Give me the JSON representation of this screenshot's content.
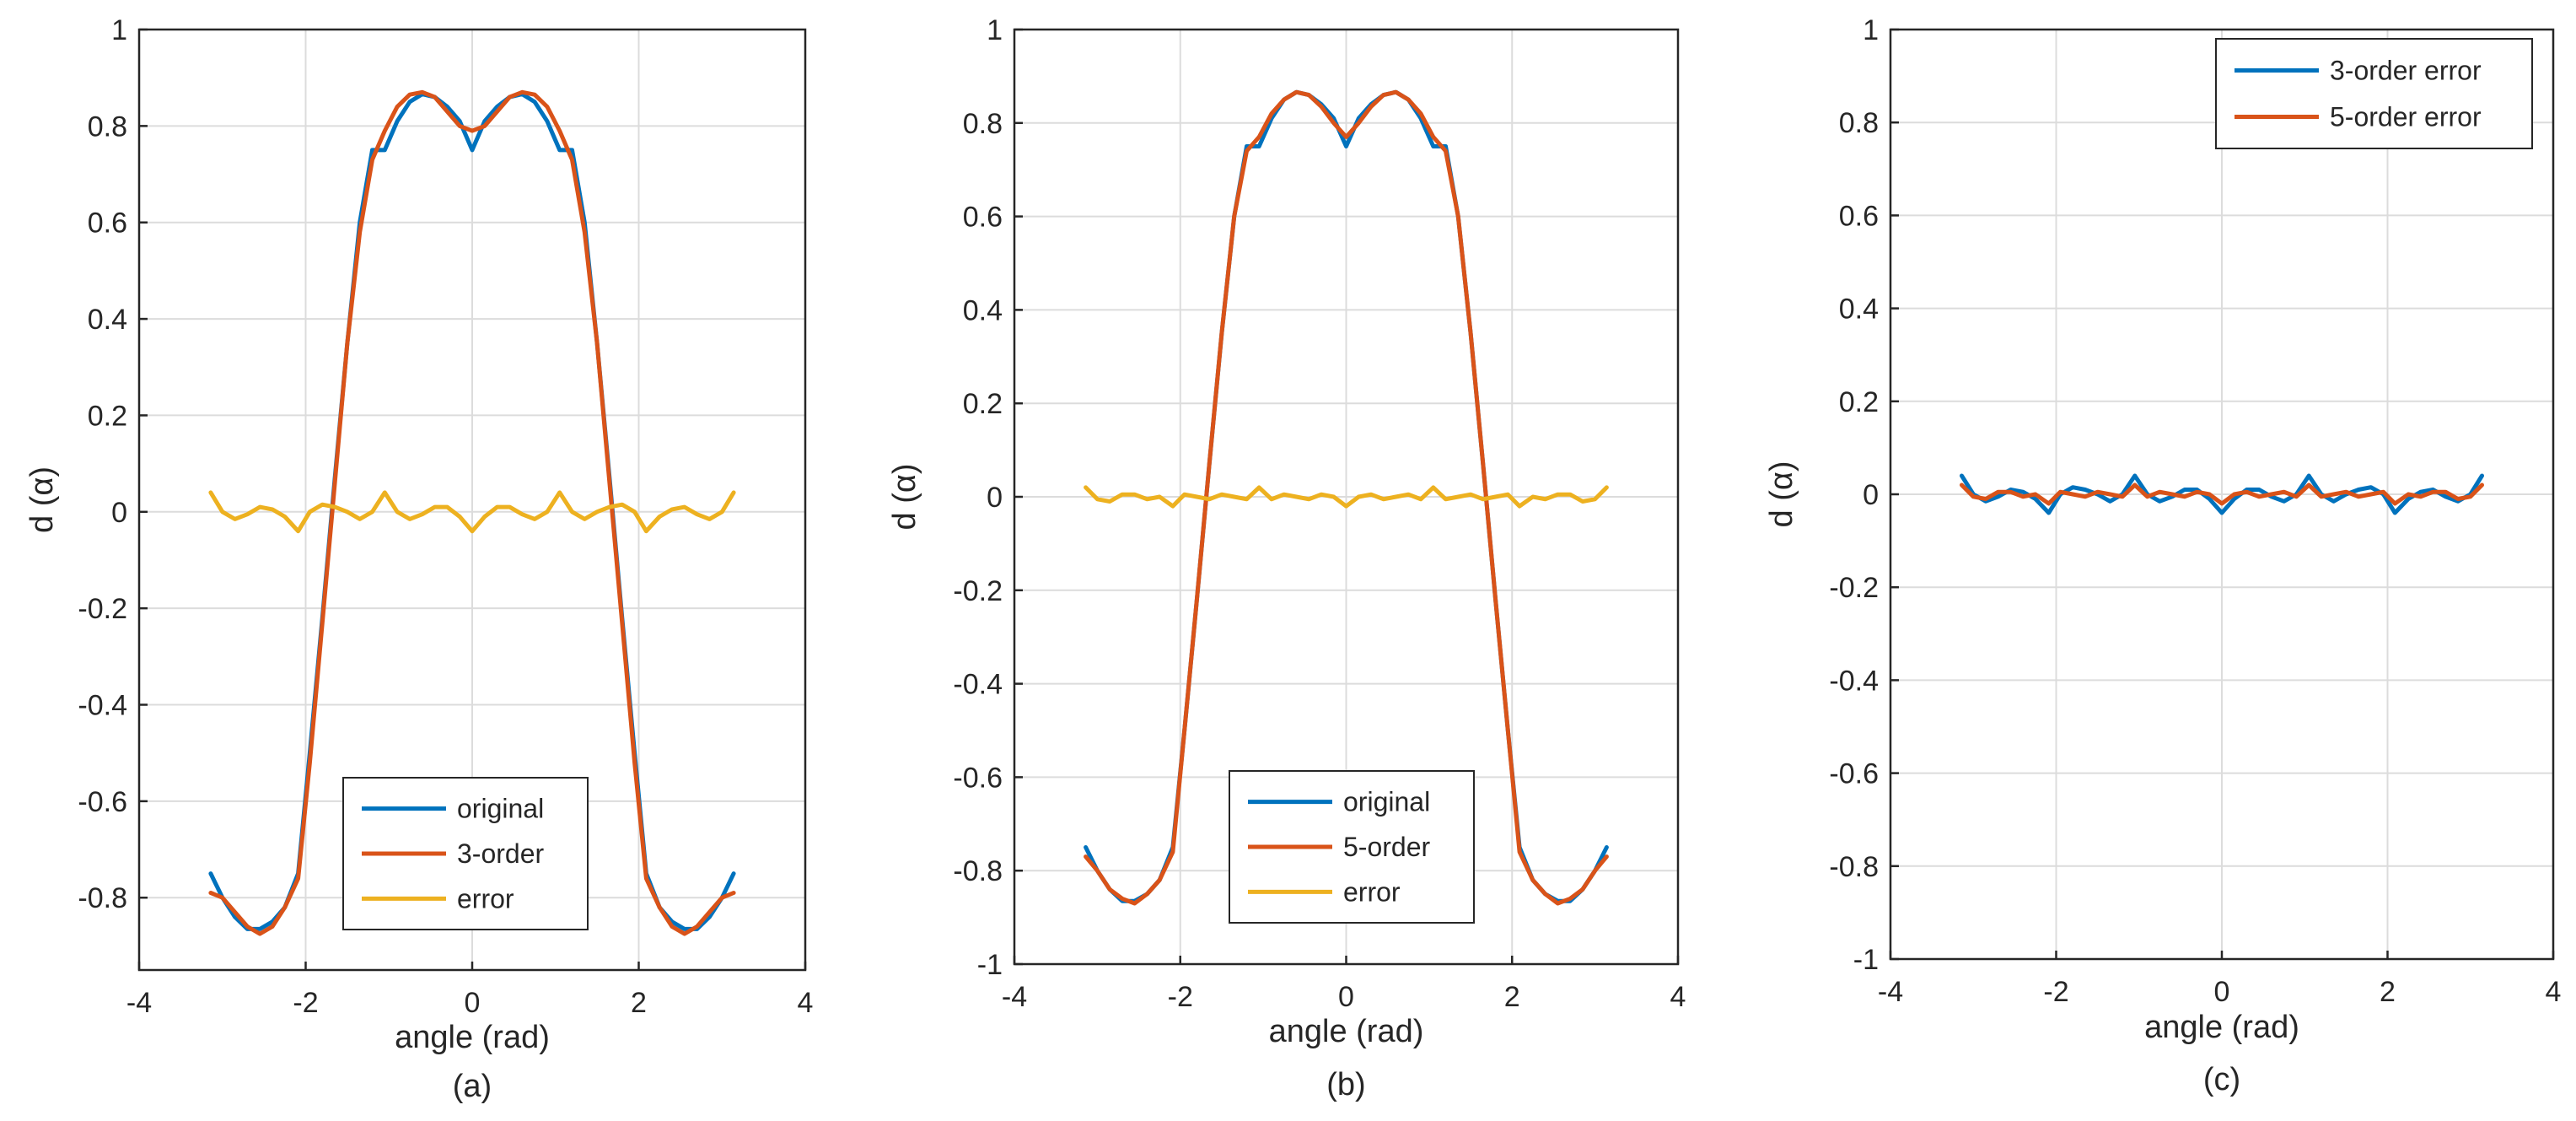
{
  "chart_data": [
    {
      "type": "line",
      "panel": "a",
      "caption": "(a)",
      "xlabel": "angle (rad)",
      "ylabel": "d (α)",
      "xlim": [
        -4,
        4
      ],
      "ylim": [
        -0.95,
        1.0
      ],
      "xticks": [
        -4,
        -2,
        0,
        2,
        4
      ],
      "yticks": [
        -0.8,
        -0.6,
        -0.4,
        -0.2,
        0,
        0.2,
        0.4,
        0.6,
        0.8,
        1
      ],
      "grid": true,
      "legend_position": "bottom-center",
      "series": [
        {
          "name": "original",
          "color": "#0072BD",
          "x": [
            -3.14,
            -3.0,
            -2.85,
            -2.7,
            -2.55,
            -2.4,
            -2.25,
            -2.09,
            -1.95,
            -1.8,
            -1.65,
            -1.5,
            -1.35,
            -1.2,
            -1.05,
            -0.9,
            -0.75,
            -0.6,
            -0.45,
            -0.3,
            -0.15,
            0,
            0.15,
            0.3,
            0.45,
            0.6,
            0.75,
            0.9,
            1.05,
            1.2,
            1.35,
            1.5,
            1.65,
            1.8,
            1.95,
            2.09,
            2.25,
            2.4,
            2.55,
            2.7,
            2.85,
            3.0,
            3.14
          ],
          "y": [
            -0.75,
            -0.8,
            -0.84,
            -0.865,
            -0.865,
            -0.85,
            -0.82,
            -0.75,
            -0.5,
            -0.22,
            0.07,
            0.35,
            0.6,
            0.75,
            0.75,
            0.81,
            0.85,
            0.866,
            0.86,
            0.84,
            0.81,
            0.75,
            0.81,
            0.84,
            0.86,
            0.866,
            0.85,
            0.81,
            0.75,
            0.75,
            0.6,
            0.35,
            0.07,
            -0.22,
            -0.5,
            -0.75,
            -0.82,
            -0.85,
            -0.865,
            -0.865,
            -0.84,
            -0.8,
            -0.75
          ]
        },
        {
          "name": "3-order",
          "color": "#D95319",
          "x": [
            -3.14,
            -3.0,
            -2.85,
            -2.7,
            -2.55,
            -2.4,
            -2.25,
            -2.09,
            -1.95,
            -1.8,
            -1.65,
            -1.5,
            -1.35,
            -1.2,
            -1.05,
            -0.9,
            -0.75,
            -0.6,
            -0.45,
            -0.3,
            -0.15,
            0,
            0.15,
            0.3,
            0.45,
            0.6,
            0.75,
            0.9,
            1.05,
            1.2,
            1.35,
            1.5,
            1.65,
            1.8,
            1.95,
            2.09,
            2.25,
            2.4,
            2.55,
            2.7,
            2.85,
            3.0,
            3.14
          ],
          "y": [
            -0.79,
            -0.8,
            -0.83,
            -0.86,
            -0.875,
            -0.86,
            -0.82,
            -0.76,
            -0.52,
            -0.23,
            0.06,
            0.35,
            0.58,
            0.73,
            0.79,
            0.84,
            0.865,
            0.87,
            0.86,
            0.83,
            0.8,
            0.79,
            0.8,
            0.83,
            0.86,
            0.87,
            0.865,
            0.84,
            0.79,
            0.73,
            0.58,
            0.35,
            0.06,
            -0.23,
            -0.52,
            -0.76,
            -0.82,
            -0.86,
            -0.875,
            -0.86,
            -0.83,
            -0.8,
            -0.79
          ]
        },
        {
          "name": "error",
          "color": "#EDB120",
          "x": [
            -3.14,
            -3.0,
            -2.85,
            -2.7,
            -2.55,
            -2.4,
            -2.25,
            -2.09,
            -1.95,
            -1.8,
            -1.65,
            -1.5,
            -1.35,
            -1.2,
            -1.05,
            -0.9,
            -0.75,
            -0.6,
            -0.45,
            -0.3,
            -0.15,
            0,
            0.15,
            0.3,
            0.45,
            0.6,
            0.75,
            0.9,
            1.05,
            1.2,
            1.35,
            1.5,
            1.65,
            1.8,
            1.95,
            2.09,
            2.25,
            2.4,
            2.55,
            2.7,
            2.85,
            3.0,
            3.14
          ],
          "y": [
            0.04,
            0.0,
            -0.015,
            -0.005,
            0.01,
            0.005,
            -0.01,
            -0.04,
            0.0,
            0.015,
            0.01,
            0.0,
            -0.015,
            0.0,
            0.04,
            0.0,
            -0.015,
            -0.005,
            0.01,
            0.01,
            -0.01,
            -0.04,
            -0.01,
            0.01,
            0.01,
            -0.005,
            -0.015,
            0.0,
            0.04,
            0.0,
            -0.015,
            0.0,
            0.01,
            0.015,
            0.0,
            -0.04,
            -0.01,
            0.005,
            0.01,
            -0.005,
            -0.015,
            0.0,
            0.04
          ]
        }
      ]
    },
    {
      "type": "line",
      "panel": "b",
      "caption": "(b)",
      "xlabel": "angle (rad)",
      "ylabel": "d (α)",
      "xlim": [
        -4,
        4
      ],
      "ylim": [
        -1,
        1
      ],
      "xticks": [
        -4,
        -2,
        0,
        2,
        4
      ],
      "yticks": [
        -1,
        -0.8,
        -0.6,
        -0.4,
        -0.2,
        0,
        0.2,
        0.4,
        0.6,
        0.8,
        1
      ],
      "grid": true,
      "legend_position": "bottom-center",
      "series": [
        {
          "name": "original",
          "color": "#0072BD",
          "x": [
            -3.14,
            -3.0,
            -2.85,
            -2.7,
            -2.55,
            -2.4,
            -2.25,
            -2.09,
            -1.95,
            -1.8,
            -1.65,
            -1.5,
            -1.35,
            -1.2,
            -1.05,
            -0.9,
            -0.75,
            -0.6,
            -0.45,
            -0.3,
            -0.15,
            0,
            0.15,
            0.3,
            0.45,
            0.6,
            0.75,
            0.9,
            1.05,
            1.2,
            1.35,
            1.5,
            1.65,
            1.8,
            1.95,
            2.09,
            2.25,
            2.4,
            2.55,
            2.7,
            2.85,
            3.0,
            3.14
          ],
          "y": [
            -0.75,
            -0.8,
            -0.84,
            -0.865,
            -0.865,
            -0.85,
            -0.82,
            -0.75,
            -0.5,
            -0.22,
            0.07,
            0.35,
            0.6,
            0.75,
            0.75,
            0.81,
            0.85,
            0.866,
            0.86,
            0.84,
            0.81,
            0.75,
            0.81,
            0.84,
            0.86,
            0.866,
            0.85,
            0.81,
            0.75,
            0.75,
            0.6,
            0.35,
            0.07,
            -0.22,
            -0.5,
            -0.75,
            -0.82,
            -0.85,
            -0.865,
            -0.865,
            -0.84,
            -0.8,
            -0.75
          ]
        },
        {
          "name": "5-order",
          "color": "#D95319",
          "x": [
            -3.14,
            -3.0,
            -2.85,
            -2.7,
            -2.55,
            -2.4,
            -2.25,
            -2.09,
            -1.95,
            -1.8,
            -1.65,
            -1.5,
            -1.35,
            -1.2,
            -1.05,
            -0.9,
            -0.75,
            -0.6,
            -0.45,
            -0.3,
            -0.15,
            0,
            0.15,
            0.3,
            0.45,
            0.6,
            0.75,
            0.9,
            1.05,
            1.2,
            1.35,
            1.5,
            1.65,
            1.8,
            1.95,
            2.09,
            2.25,
            2.4,
            2.55,
            2.7,
            2.85,
            3.0,
            3.14
          ],
          "y": [
            -0.77,
            -0.8,
            -0.84,
            -0.86,
            -0.87,
            -0.85,
            -0.82,
            -0.76,
            -0.5,
            -0.22,
            0.07,
            0.35,
            0.6,
            0.74,
            0.77,
            0.82,
            0.85,
            0.866,
            0.86,
            0.835,
            0.8,
            0.77,
            0.8,
            0.835,
            0.86,
            0.866,
            0.85,
            0.82,
            0.77,
            0.74,
            0.6,
            0.35,
            0.07,
            -0.22,
            -0.5,
            -0.76,
            -0.82,
            -0.85,
            -0.87,
            -0.86,
            -0.84,
            -0.8,
            -0.77
          ]
        },
        {
          "name": "error",
          "color": "#EDB120",
          "x": [
            -3.14,
            -3.0,
            -2.85,
            -2.7,
            -2.55,
            -2.4,
            -2.25,
            -2.09,
            -1.95,
            -1.8,
            -1.65,
            -1.5,
            -1.35,
            -1.2,
            -1.05,
            -0.9,
            -0.75,
            -0.6,
            -0.45,
            -0.3,
            -0.15,
            0,
            0.15,
            0.3,
            0.45,
            0.6,
            0.75,
            0.9,
            1.05,
            1.2,
            1.35,
            1.5,
            1.65,
            1.8,
            1.95,
            2.09,
            2.25,
            2.4,
            2.55,
            2.7,
            2.85,
            3.0,
            3.14
          ],
          "y": [
            0.02,
            -0.005,
            -0.01,
            0.005,
            0.005,
            -0.005,
            0.0,
            -0.02,
            0.005,
            0.0,
            -0.005,
            0.005,
            0.0,
            -0.005,
            0.02,
            -0.005,
            0.005,
            0.0,
            -0.005,
            0.005,
            0.0,
            -0.02,
            0.0,
            0.005,
            -0.005,
            0.0,
            0.005,
            -0.005,
            0.02,
            -0.005,
            0.0,
            0.005,
            -0.005,
            0.0,
            0.005,
            -0.02,
            0.0,
            -0.005,
            0.005,
            0.005,
            -0.01,
            -0.005,
            0.02
          ]
        }
      ]
    },
    {
      "type": "line",
      "panel": "c",
      "caption": "(c)",
      "xlabel": "angle (rad)",
      "ylabel": "d (α)",
      "xlim": [
        -4,
        4
      ],
      "ylim": [
        -1,
        1
      ],
      "xticks": [
        -4,
        -2,
        0,
        2,
        4
      ],
      "yticks": [
        -1,
        -0.8,
        -0.6,
        -0.4,
        -0.2,
        0,
        0.2,
        0.4,
        0.6,
        0.8,
        1
      ],
      "grid": true,
      "legend_position": "top-right",
      "series": [
        {
          "name": "3-order error",
          "color": "#0072BD",
          "x": [
            -3.14,
            -3.0,
            -2.85,
            -2.7,
            -2.55,
            -2.4,
            -2.25,
            -2.09,
            -1.95,
            -1.8,
            -1.65,
            -1.5,
            -1.35,
            -1.2,
            -1.05,
            -0.9,
            -0.75,
            -0.6,
            -0.45,
            -0.3,
            -0.15,
            0,
            0.15,
            0.3,
            0.45,
            0.6,
            0.75,
            0.9,
            1.05,
            1.2,
            1.35,
            1.5,
            1.65,
            1.8,
            1.95,
            2.09,
            2.25,
            2.4,
            2.55,
            2.7,
            2.85,
            3.0,
            3.14
          ],
          "y": [
            0.04,
            0.0,
            -0.015,
            -0.005,
            0.01,
            0.005,
            -0.01,
            -0.04,
            0.0,
            0.015,
            0.01,
            0.0,
            -0.015,
            0.0,
            0.04,
            0.0,
            -0.015,
            -0.005,
            0.01,
            0.01,
            -0.01,
            -0.04,
            -0.01,
            0.01,
            0.01,
            -0.005,
            -0.015,
            0.0,
            0.04,
            0.0,
            -0.015,
            0.0,
            0.01,
            0.015,
            0.0,
            -0.04,
            -0.01,
            0.005,
            0.01,
            -0.005,
            -0.015,
            0.0,
            0.04
          ]
        },
        {
          "name": "5-order error",
          "color": "#D95319",
          "x": [
            -3.14,
            -3.0,
            -2.85,
            -2.7,
            -2.55,
            -2.4,
            -2.25,
            -2.09,
            -1.95,
            -1.8,
            -1.65,
            -1.5,
            -1.35,
            -1.2,
            -1.05,
            -0.9,
            -0.75,
            -0.6,
            -0.45,
            -0.3,
            -0.15,
            0,
            0.15,
            0.3,
            0.45,
            0.6,
            0.75,
            0.9,
            1.05,
            1.2,
            1.35,
            1.5,
            1.65,
            1.8,
            1.95,
            2.09,
            2.25,
            2.4,
            2.55,
            2.7,
            2.85,
            3.0,
            3.14
          ],
          "y": [
            0.02,
            -0.005,
            -0.01,
            0.005,
            0.005,
            -0.005,
            0.0,
            -0.02,
            0.005,
            0.0,
            -0.005,
            0.005,
            0.0,
            -0.005,
            0.02,
            -0.005,
            0.005,
            0.0,
            -0.005,
            0.005,
            0.0,
            -0.02,
            0.0,
            0.005,
            -0.005,
            0.0,
            0.005,
            -0.005,
            0.02,
            -0.005,
            0.0,
            0.005,
            -0.005,
            0.0,
            0.005,
            -0.02,
            0.0,
            -0.005,
            0.005,
            0.005,
            -0.01,
            -0.005,
            0.02
          ]
        }
      ]
    }
  ]
}
